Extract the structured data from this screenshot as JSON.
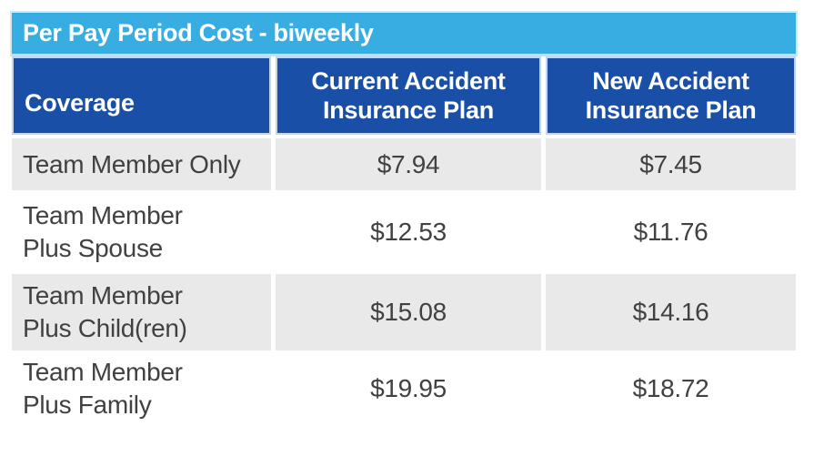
{
  "table": {
    "title": "Per Pay Period Cost - biweekly",
    "columns": [
      "Coverage",
      "Current Accident\nInsurance Plan",
      "New Accident\nInsurance Plan"
    ],
    "rows": [
      {
        "coverage": "Team Member Only",
        "current": "$7.94",
        "new": "$7.45"
      },
      {
        "coverage": "Team Member\nPlus Spouse",
        "current": "$12.53",
        "new": "$11.76"
      },
      {
        "coverage": "Team Member\nPlus Child(ren)",
        "current": "$15.08",
        "new": "$14.16"
      },
      {
        "coverage": "Team Member\nPlus Family",
        "current": "$19.95",
        "new": "$18.72"
      }
    ],
    "colors": {
      "title_band_bg": "#38ADE2",
      "header_bg": "#194FA6",
      "row_alt_bg": "#E9E9EA",
      "row_bg": "#FFFFFF",
      "header_text": "#FFFFFF",
      "body_text": "#414144"
    }
  },
  "chart_data": {
    "type": "table",
    "title": "Per Pay Period Cost - biweekly",
    "columns": [
      "Coverage",
      "Current Accident Insurance Plan",
      "New Accident Insurance Plan"
    ],
    "rows": [
      [
        "Team Member Only",
        "$7.94",
        "$7.45"
      ],
      [
        "Team Member Plus Spouse",
        "$12.53",
        "$11.76"
      ],
      [
        "Team Member Plus Child(ren)",
        "$15.08",
        "$14.16"
      ],
      [
        "Team Member Plus Family",
        "$19.95",
        "$18.72"
      ]
    ],
    "values": {
      "current_plan": [
        7.94,
        12.53,
        15.08,
        19.95
      ],
      "new_plan": [
        7.45,
        11.76,
        14.16,
        18.72
      ]
    },
    "units": "USD per biweekly pay period"
  }
}
